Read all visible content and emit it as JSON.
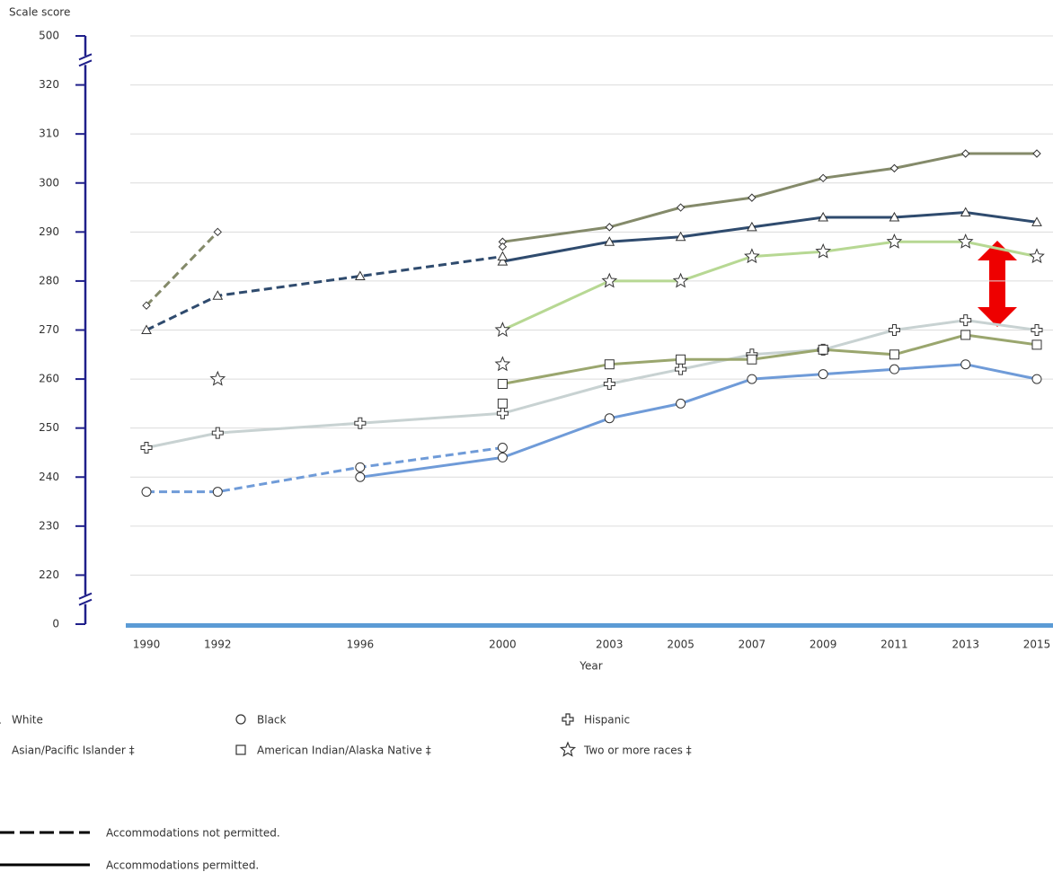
{
  "chart_data": {
    "type": "line",
    "y_label": "Scale score",
    "x_label": "Year",
    "x": [
      1990,
      1992,
      1996,
      2000,
      2003,
      2005,
      2007,
      2009,
      2011,
      2013,
      2015
    ],
    "xlim": [
      1990,
      2015
    ],
    "xticks": [
      1990,
      1992,
      1996,
      2000,
      2003,
      2005,
      2007,
      2009,
      2011,
      2013,
      2015
    ],
    "ylim": [
      0,
      500
    ],
    "yticks": [
      0,
      220,
      230,
      240,
      250,
      260,
      270,
      280,
      290,
      300,
      310,
      320,
      500
    ],
    "axis_breaks": true,
    "grid": true,
    "series": [
      {
        "name": "White",
        "color": "#2f4b6e",
        "marker": "triangle",
        "values": [
          null,
          null,
          null,
          284,
          288,
          289,
          291,
          293,
          293,
          294,
          292
        ],
        "values_no_accommodations": [
          270,
          277,
          281,
          285,
          null,
          null,
          null,
          null,
          null,
          null,
          null
        ]
      },
      {
        "name": "Black",
        "color": "#6f9bd8",
        "marker": "circle",
        "values": [
          null,
          null,
          240,
          244,
          252,
          255,
          260,
          261,
          262,
          263,
          260
        ],
        "values_no_accommodations": [
          237,
          237,
          242,
          246,
          null,
          null,
          null,
          null,
          null,
          null,
          null
        ]
      },
      {
        "name": "Hispanic",
        "color": "#c8d2d2",
        "marker": "cross",
        "values": [
          246,
          249,
          251,
          253,
          259,
          262,
          265,
          266,
          270,
          272,
          270
        ]
      },
      {
        "name": "Asian/Pacific Islander ‡",
        "color": "#848a6a",
        "marker": "diamond",
        "values": [
          null,
          null,
          null,
          288,
          291,
          295,
          297,
          301,
          303,
          306,
          306
        ],
        "values_no_accommodations": [
          275,
          290,
          null,
          287,
          null,
          null,
          null,
          null,
          null,
          null,
          null
        ]
      },
      {
        "name": "American Indian/Alaska Native ‡",
        "color": "#9aa66e",
        "marker": "square",
        "values": [
          null,
          null,
          null,
          259,
          263,
          264,
          264,
          266,
          265,
          269,
          267
        ],
        "values_no_accommodations": [
          null,
          null,
          null,
          255,
          null,
          null,
          null,
          null,
          null,
          null,
          null
        ]
      },
      {
        "name": "Two or more races ‡",
        "color": "#b7d893",
        "marker": "star",
        "values": [
          null,
          null,
          null,
          270,
          280,
          280,
          285,
          286,
          288,
          288,
          285
        ],
        "values_no_accommodations": [
          null,
          260,
          null,
          263,
          null,
          null,
          null,
          null,
          null,
          null,
          null
        ]
      }
    ],
    "line_styles": {
      "dashed": "Accommodations not permitted.",
      "solid": "Accommodations permitted."
    }
  }
}
